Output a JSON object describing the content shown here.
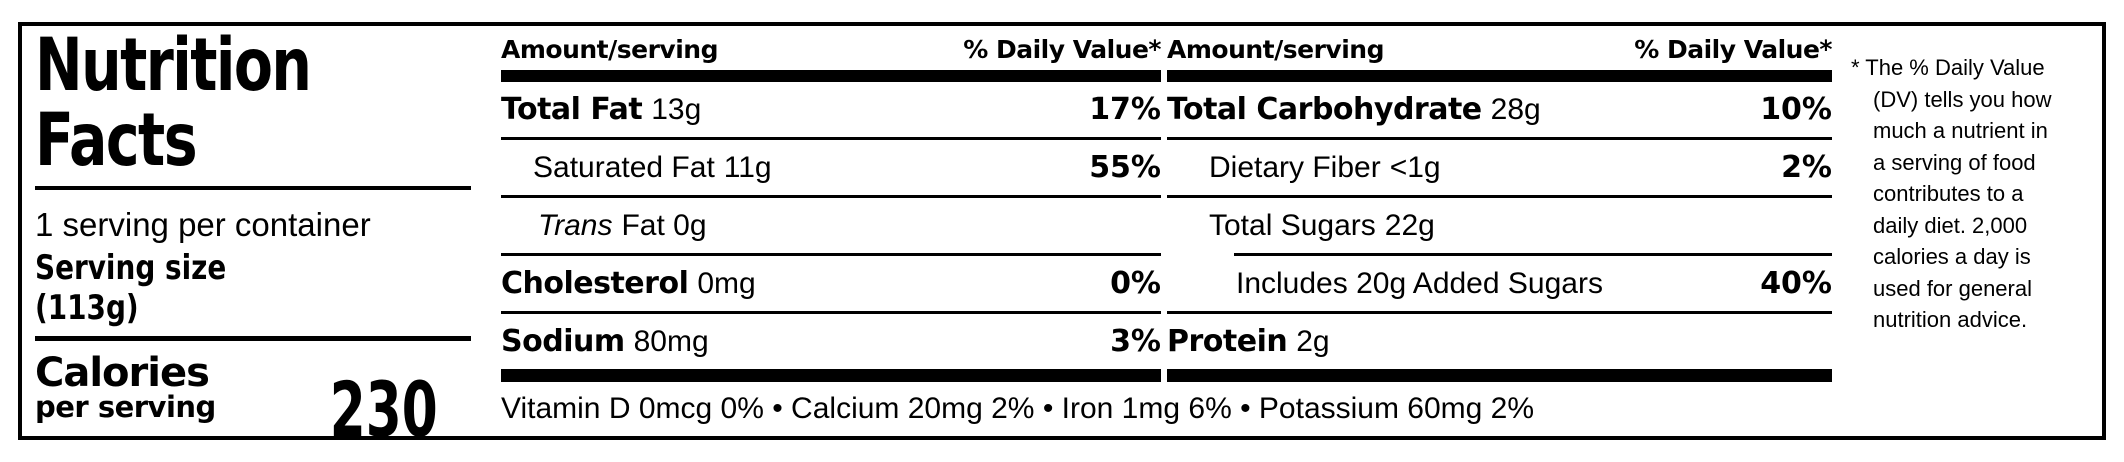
{
  "left_panel": {
    "title_line1": "Nutrition",
    "title_line2": "Facts",
    "servings_per_container": "1 serving per container",
    "serving_size_label": "Serving size",
    "serving_size_value": "(113g)",
    "calories_label": "Calories",
    "calories_sublabel": "per serving",
    "calories_value": "230"
  },
  "columns": [
    {
      "header_amount": "Amount/serving",
      "header_dv": "% Daily Value*",
      "rows": [
        {
          "label": "Total Fat",
          "amount": "13g",
          "dv": "17%"
        },
        {
          "label": "Saturated Fat",
          "amount": "11g",
          "dv": "55%"
        },
        {
          "label": "Trans",
          "amount": "Fat 0g",
          "dv": ""
        },
        {
          "label": "Cholesterol",
          "amount": "0mg",
          "dv": "0%"
        },
        {
          "label": "Sodium",
          "amount": "80mg",
          "dv": "3%"
        }
      ]
    },
    {
      "header_amount": "Amount/serving",
      "header_dv": "% Daily Value*",
      "rows": [
        {
          "label": "Total Carbohydrate",
          "amount": "28g",
          "dv": "10%"
        },
        {
          "label": "Dietary Fiber",
          "amount": "<1g",
          "dv": "2%"
        },
        {
          "label": "Total Sugars",
          "amount": "22g",
          "dv": ""
        },
        {
          "label": "Includes 20g Added Sugars",
          "amount": "",
          "dv": "40%"
        },
        {
          "label": "Protein",
          "amount": "2g",
          "dv": ""
        }
      ]
    }
  ],
  "micronutrients": "Vitamin D 0mcg 0% • Calcium 20mg 2% • Iron 1mg 6% • Potassium 60mg 2%",
  "footnote": "* The % Daily Value\n(DV) tells you how\nmuch a nutrient in\na serving of food\ncontributes to a\ndaily diet. 2,000\ncalories a day is\nused for general\nnutrition advice.",
  "colors": {
    "ink": "#000000",
    "paper": "#ffffff"
  }
}
